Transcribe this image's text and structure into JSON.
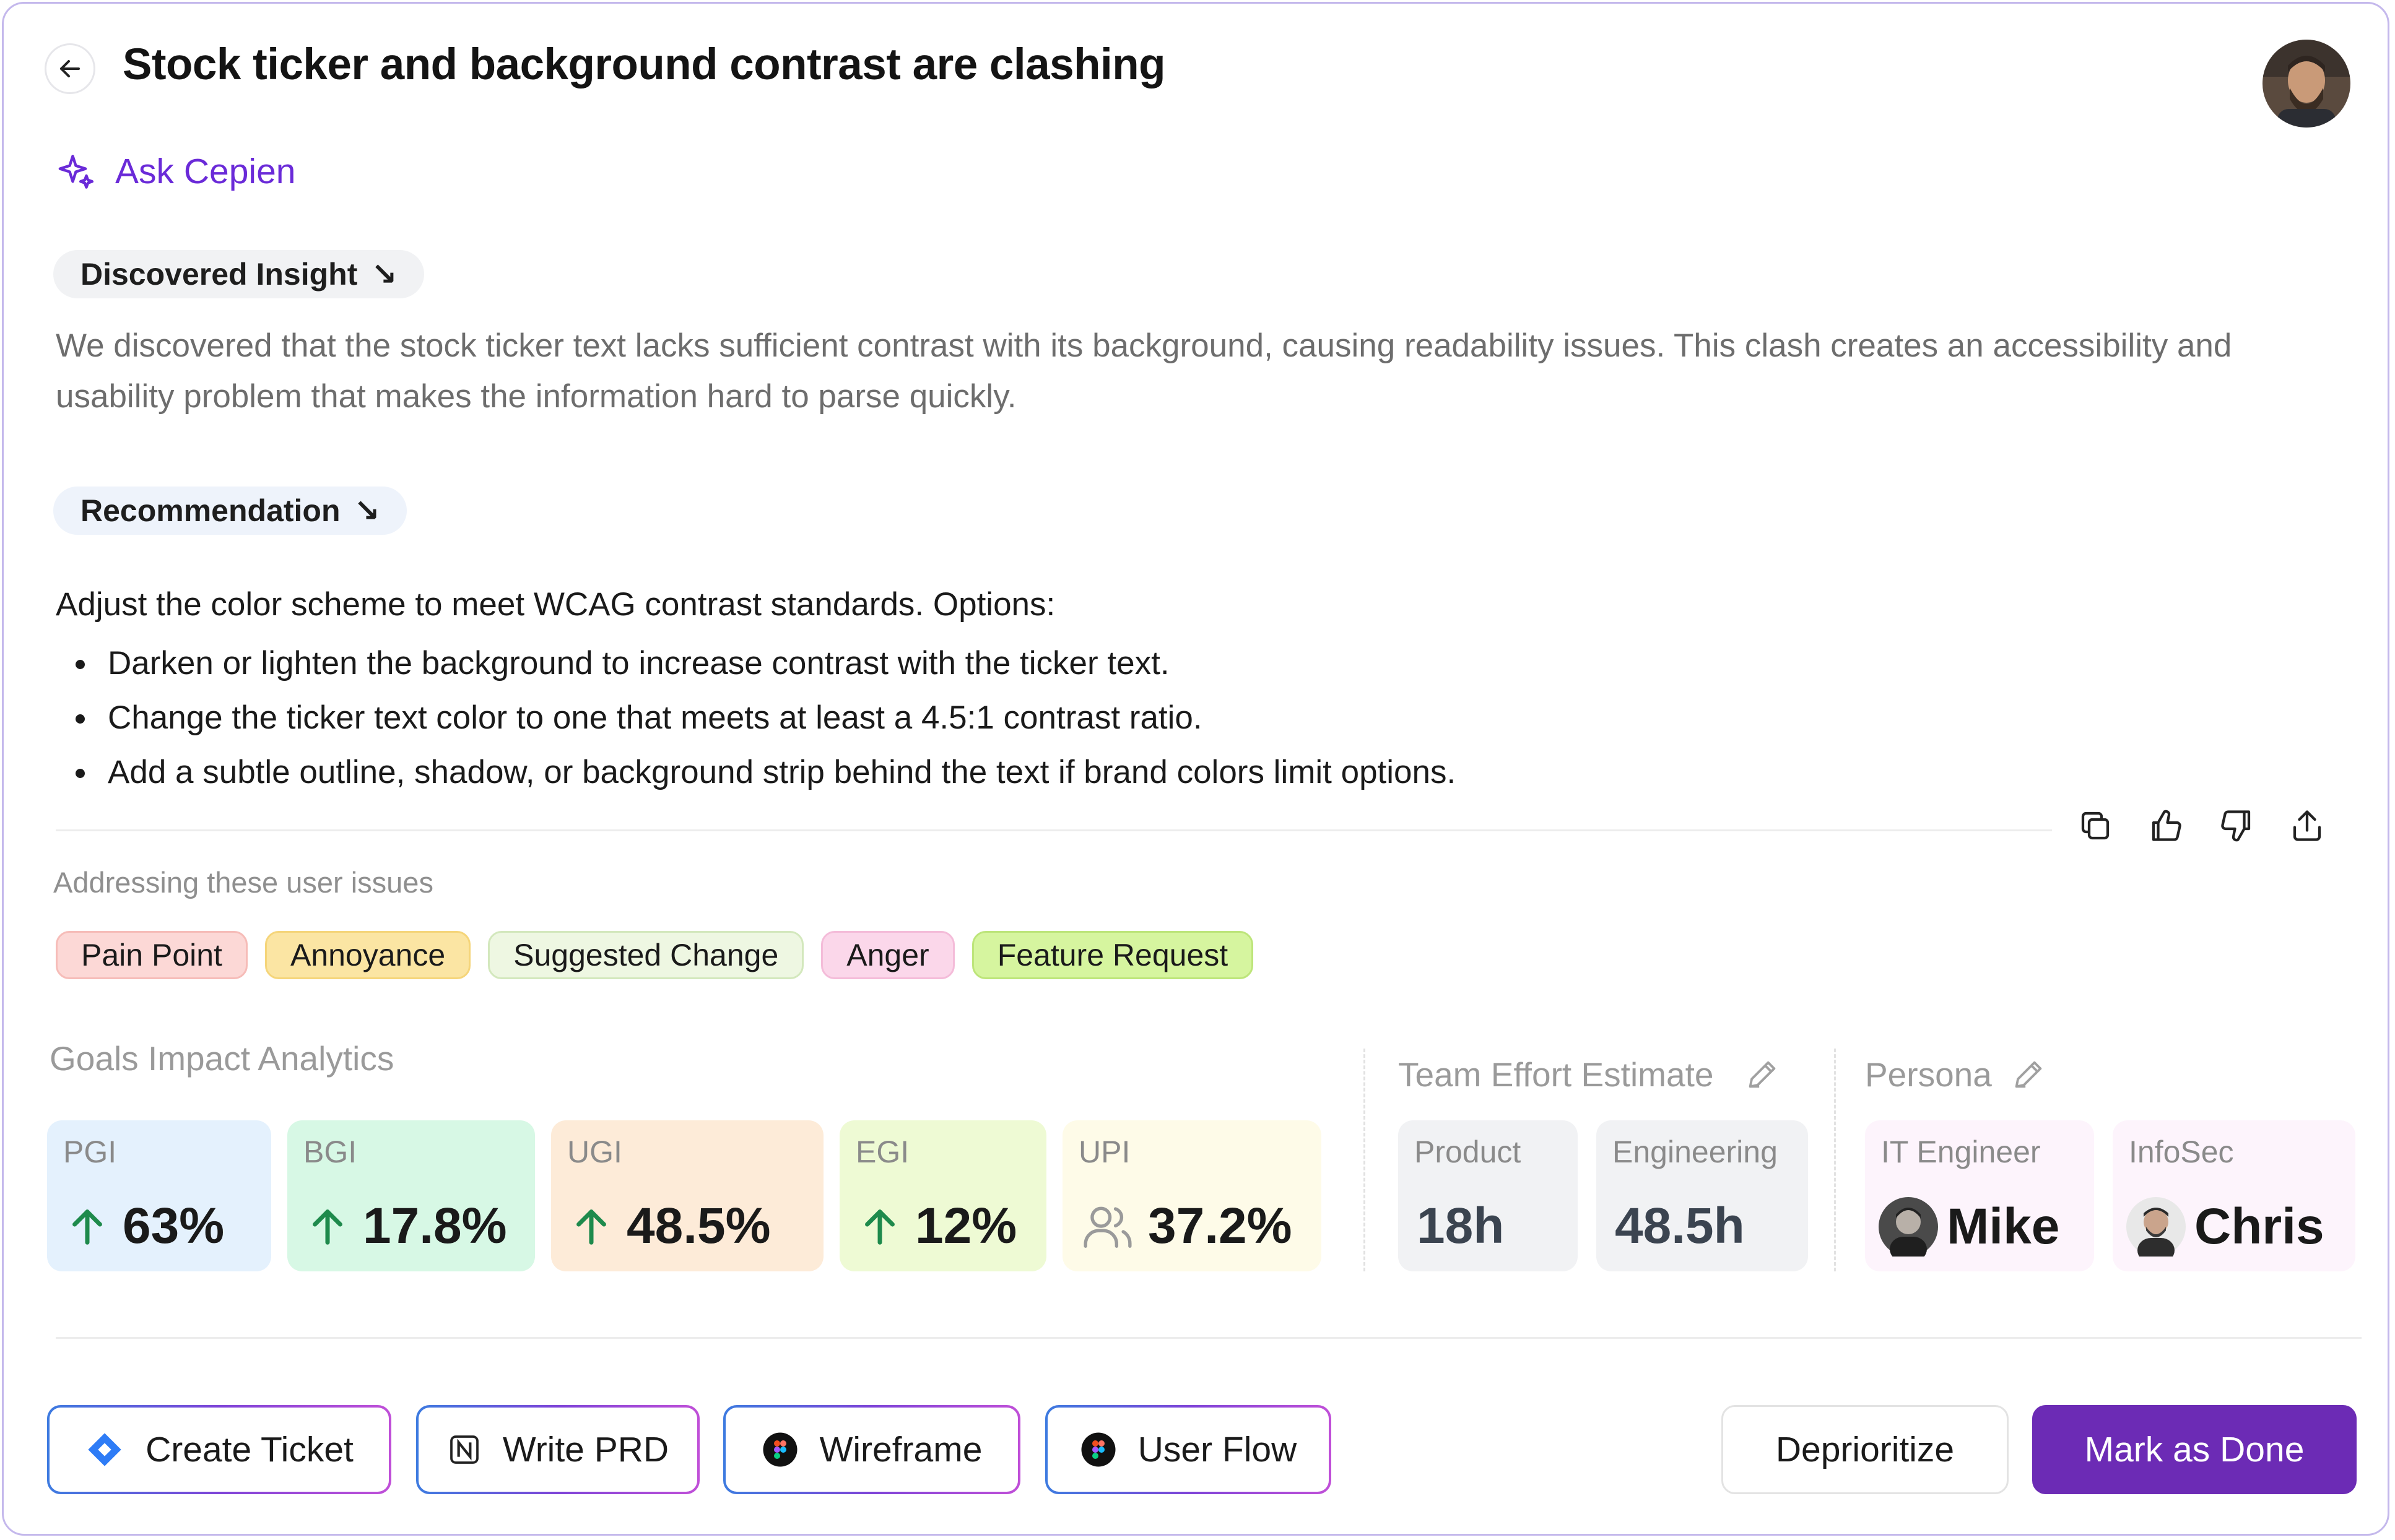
{
  "header": {
    "title": "Stock ticker and background contrast are clashing",
    "ask_label": "Ask Cepien"
  },
  "insight": {
    "label": "Discovered Insight",
    "arrow": "↘",
    "text": "We discovered that the stock ticker text lacks sufficient contrast with its background, causing readability issues. This clash creates an accessibility and usability problem that makes the information hard to parse quickly."
  },
  "recommendation": {
    "label": "Recommendation",
    "arrow": "↘",
    "intro": "Adjust the color scheme to meet WCAG contrast standards. Options:",
    "items": [
      "Darken or lighten the background to increase contrast with the ticker text.",
      "Change the ticker text color to one that meets at least a 4.5:1 contrast ratio.",
      "Add a subtle outline, shadow, or background strip behind the text if brand colors limit options."
    ]
  },
  "issues": {
    "label": "Addressing these user issues",
    "tags": [
      {
        "label": "Pain Point",
        "bg": "#fcd8d6",
        "border": "#f6bcb8"
      },
      {
        "label": "Annoyance",
        "bg": "#fbe5a3",
        "border": "#f5d57a"
      },
      {
        "label": "Suggested Change",
        "bg": "#eef7e2",
        "border": "#d3e8bd"
      },
      {
        "label": "Anger",
        "bg": "#fbd7ea",
        "border": "#f4bcd9"
      },
      {
        "label": "Feature Request",
        "bg": "#d6f59f",
        "border": "#bde57a"
      }
    ]
  },
  "goals": {
    "label": "Goals Impact Analytics",
    "cards": [
      {
        "label": "PGI",
        "value": "63%",
        "bg": "#e4f1fd",
        "icon": "arrow-up-icon"
      },
      {
        "label": "BGI",
        "value": "17.8%",
        "bg": "#d7f8e5",
        "icon": "arrow-up-icon"
      },
      {
        "label": "UGI",
        "value": "48.5%",
        "bg": "#fdebd8",
        "icon": "arrow-up-icon"
      },
      {
        "label": "EGI",
        "value": "12%",
        "bg": "#eefad4",
        "icon": "arrow-up-icon"
      },
      {
        "label": "UPI",
        "value": "37.2%",
        "bg": "#fefbe8",
        "icon": "users-icon"
      }
    ]
  },
  "effort": {
    "label": "Team Effort Estimate",
    "cards": [
      {
        "label": "Product",
        "value": "18h"
      },
      {
        "label": "Engineering",
        "value": "48.5h"
      }
    ]
  },
  "persona": {
    "label": "Persona",
    "cards": [
      {
        "label": "IT Engineer",
        "value": "Mike"
      },
      {
        "label": "InfoSec",
        "value": "Chris"
      }
    ]
  },
  "footer": {
    "create_ticket": "Create Ticket",
    "write_prd": "Write PRD",
    "wireframe": "Wireframe",
    "user_flow": "User Flow",
    "deprioritize": "Deprioritize",
    "mark_done": "Mark as Done"
  },
  "colors": {
    "accent": "#6a2ad8",
    "primary_button": "#6c2bb5",
    "arrow_up": "#1e8a4c"
  }
}
